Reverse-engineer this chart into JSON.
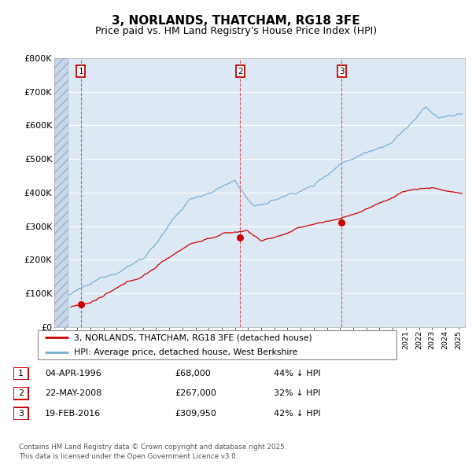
{
  "title": "3, NORLANDS, THATCHAM, RG18 3FE",
  "subtitle": "Price paid vs. HM Land Registry's House Price Index (HPI)",
  "ylim": [
    0,
    800000
  ],
  "yticks": [
    0,
    100000,
    200000,
    300000,
    400000,
    500000,
    600000,
    700000,
    800000
  ],
  "ytick_labels": [
    "£0",
    "£100K",
    "£200K",
    "£300K",
    "£400K",
    "£500K",
    "£600K",
    "£700K",
    "£800K"
  ],
  "xlim_start": 1994.25,
  "xlim_end": 2025.5,
  "plot_bg_color": "#dce9f5",
  "hatch_region_end": 1995.3,
  "grid_color": "#ffffff",
  "red_line_color": "#cc0000",
  "blue_line_color": "#7aadd4",
  "transactions": [
    {
      "num": 1,
      "date": "04-APR-1996",
      "price": 68000,
      "pct": "44%",
      "year": 1996.27
    },
    {
      "num": 2,
      "date": "22-MAY-2008",
      "price": 267000,
      "pct": "32%",
      "year": 2008.39
    },
    {
      "num": 3,
      "date": "19-FEB-2016",
      "price": 309950,
      "pct": "42%",
      "year": 2016.13
    }
  ],
  "legend_line1": "3, NORLANDS, THATCHAM, RG18 3FE (detached house)",
  "legend_line2": "HPI: Average price, detached house, West Berkshire",
  "footer": "Contains HM Land Registry data © Crown copyright and database right 2025.\nThis data is licensed under the Open Government Licence v3.0.",
  "title_fontsize": 11,
  "subtitle_fontsize": 9,
  "tick_fontsize": 8
}
